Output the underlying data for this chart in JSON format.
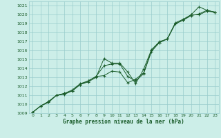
{
  "title": "Graphe pression niveau de la mer (hPa)",
  "xlim": [
    -0.5,
    23.5
  ],
  "ylim": [
    1009,
    1021.5
  ],
  "xticks": [
    0,
    1,
    2,
    3,
    4,
    5,
    6,
    7,
    8,
    9,
    10,
    11,
    12,
    13,
    14,
    15,
    16,
    17,
    18,
    19,
    20,
    21,
    22,
    23
  ],
  "yticks": [
    1009,
    1010,
    1011,
    1012,
    1013,
    1014,
    1015,
    1016,
    1017,
    1018,
    1019,
    1020,
    1021
  ],
  "bg_color": "#cceee8",
  "grid_color": "#99cccc",
  "line_color": "#1a5c2a",
  "line1_x": [
    0,
    1,
    2,
    3,
    4,
    5,
    6,
    7,
    8,
    9,
    10,
    11,
    12,
    13,
    14,
    15,
    16,
    17,
    18,
    19,
    20,
    21,
    22,
    23
  ],
  "line1_y": [
    1009.1,
    1009.8,
    1010.3,
    1011.0,
    1011.2,
    1011.5,
    1012.2,
    1012.5,
    1013.0,
    1015.1,
    1014.6,
    1014.6,
    1013.6,
    1012.3,
    1013.9,
    1016.1,
    1017.0,
    1017.3,
    1019.1,
    1019.5,
    1020.0,
    1020.9,
    1020.5,
    1020.3
  ],
  "line2_x": [
    0,
    1,
    2,
    3,
    4,
    5,
    6,
    7,
    8,
    9,
    10,
    11,
    12,
    13,
    14,
    15,
    16,
    17,
    18,
    19,
    20,
    21,
    22,
    23
  ],
  "line2_y": [
    1009.1,
    1009.8,
    1010.2,
    1011.0,
    1011.1,
    1011.5,
    1012.2,
    1012.6,
    1013.1,
    1014.3,
    1014.5,
    1014.5,
    1013.1,
    1012.6,
    1013.4,
    1015.9,
    1016.9,
    1017.3,
    1019.0,
    1019.4,
    1020.0,
    1020.0,
    1020.4,
    1020.3
  ],
  "line3_x": [
    0,
    1,
    2,
    3,
    4,
    5,
    6,
    7,
    8,
    9,
    10,
    11,
    12,
    13,
    14,
    15,
    16,
    17,
    18,
    19,
    20,
    21,
    22,
    23
  ],
  "line3_y": [
    1009.1,
    1009.8,
    1010.3,
    1011.0,
    1011.2,
    1011.6,
    1012.3,
    1012.6,
    1013.1,
    1013.2,
    1013.7,
    1013.6,
    1012.4,
    1012.8,
    1013.5,
    1016.0,
    1016.9,
    1017.3,
    1019.0,
    1019.4,
    1019.9,
    1020.1,
    1020.5,
    1020.3
  ]
}
